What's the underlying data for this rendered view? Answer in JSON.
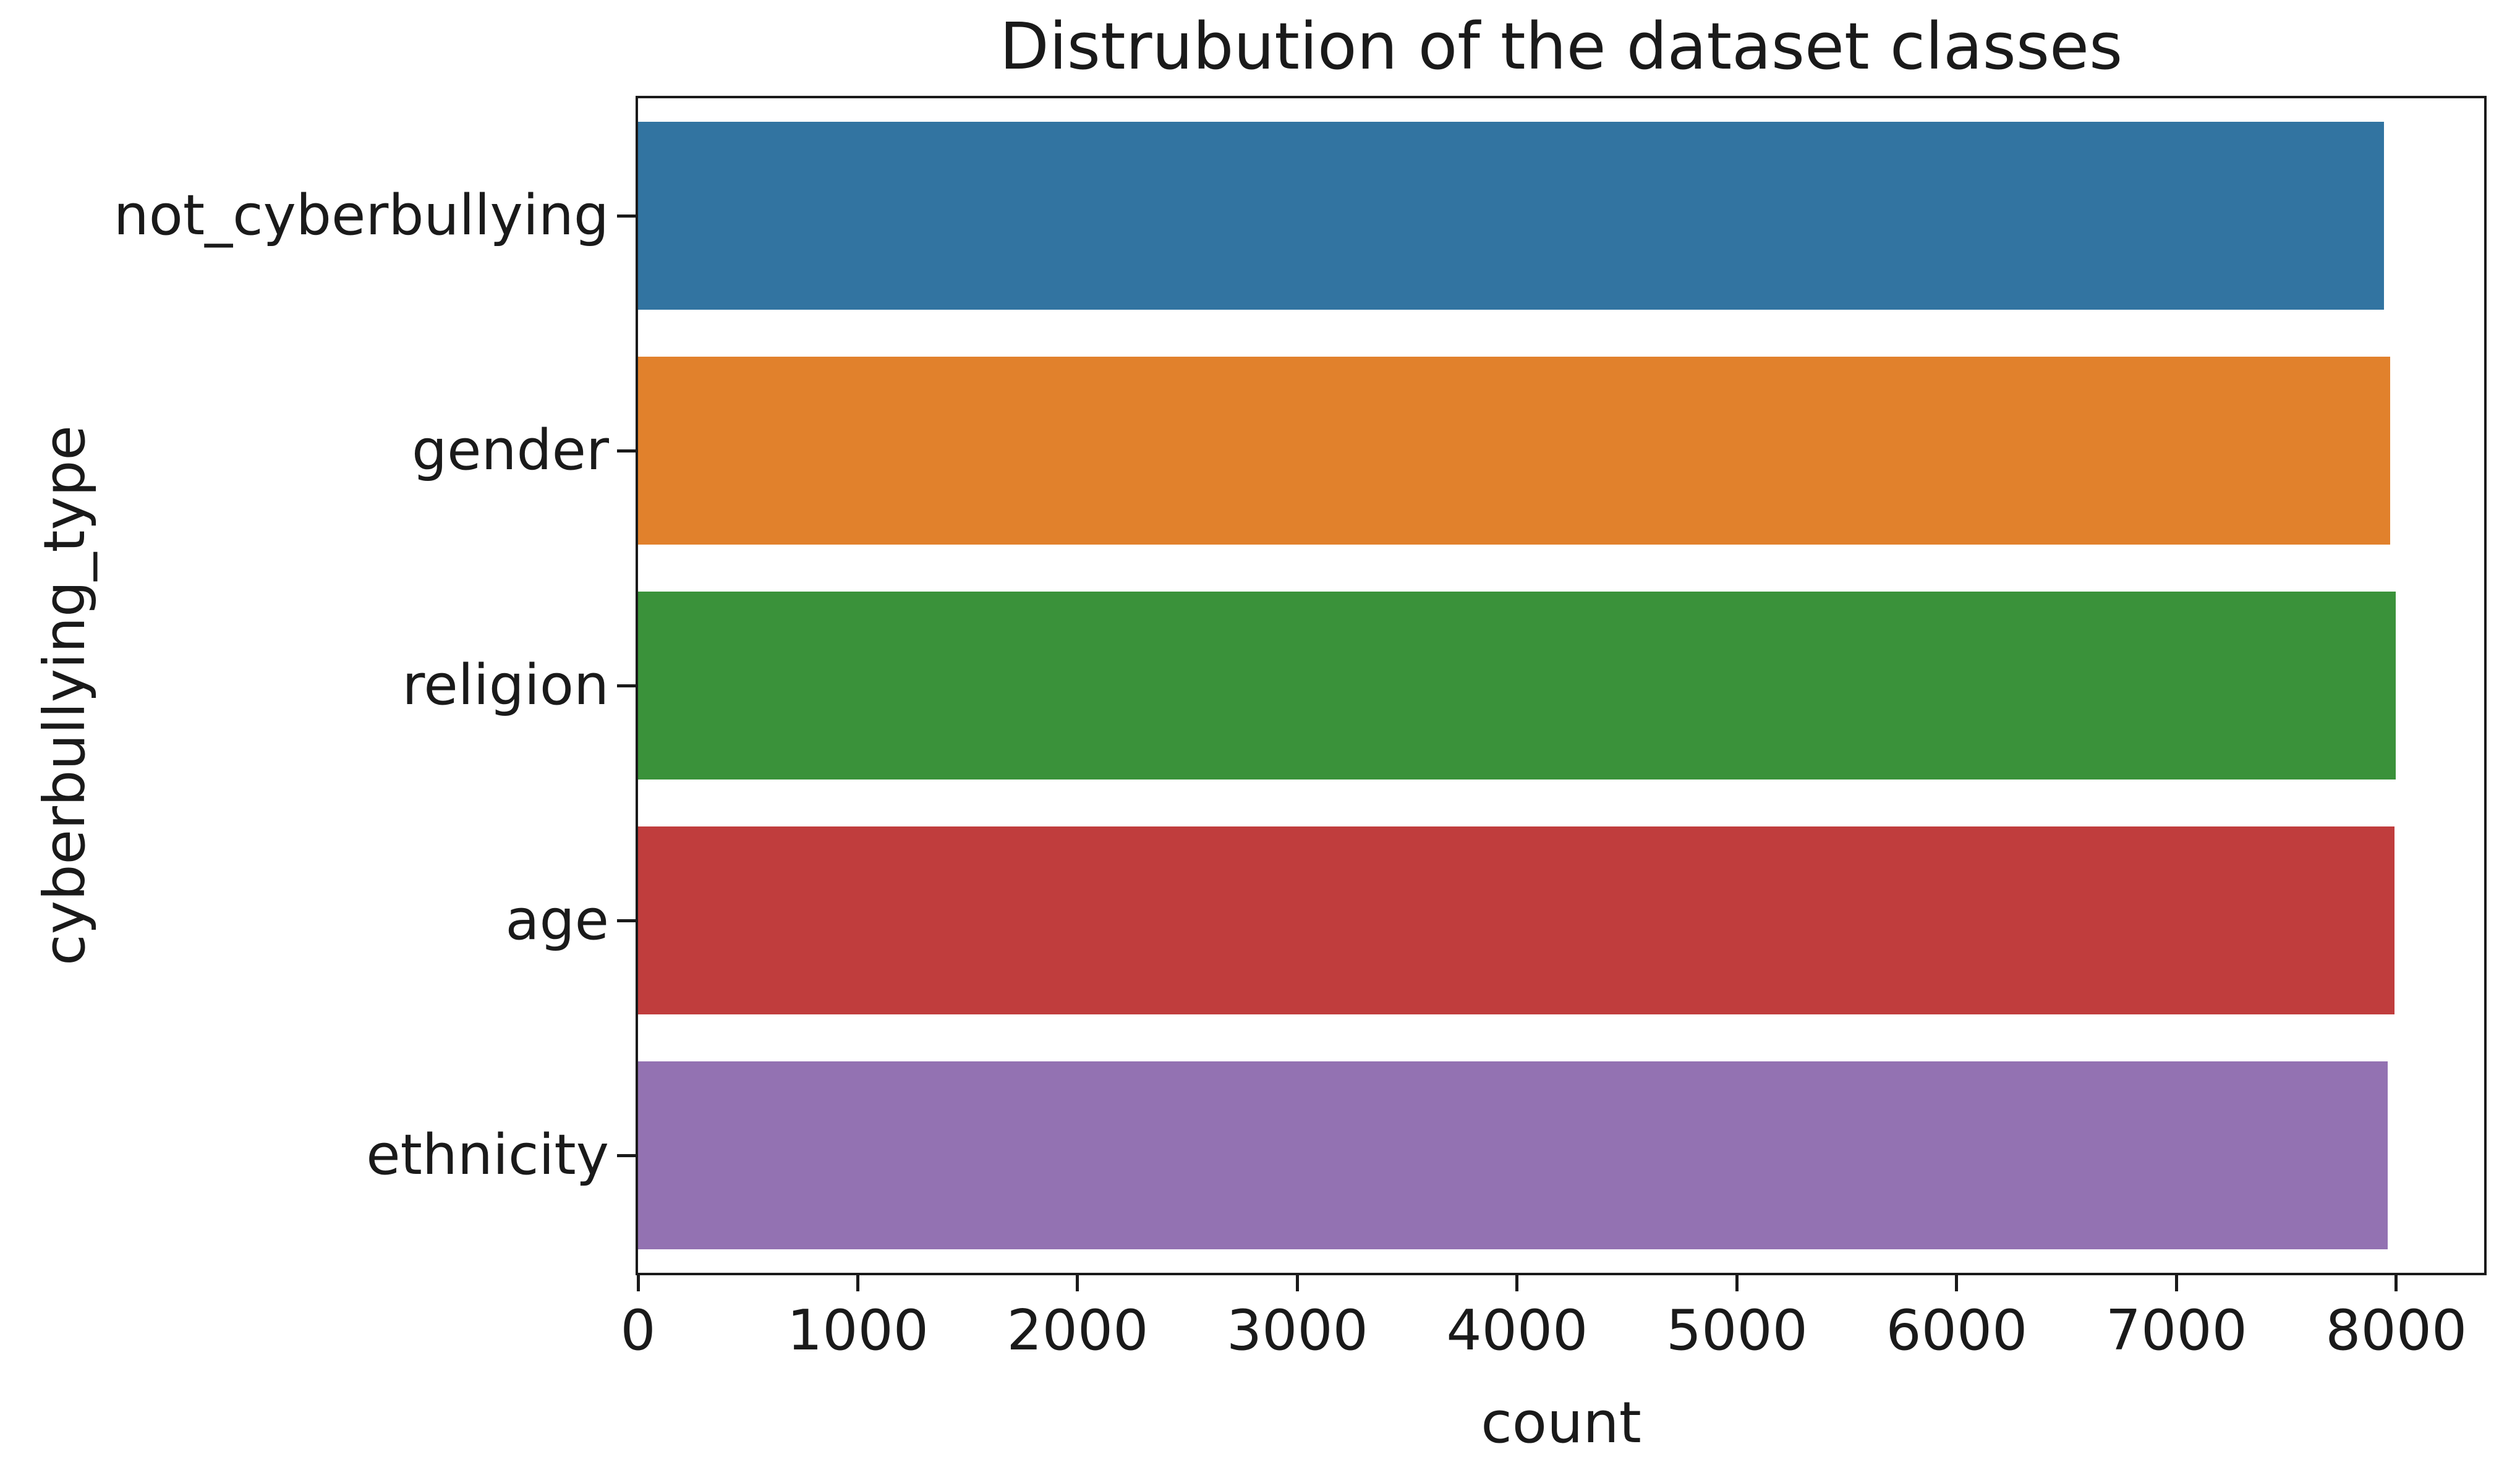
{
  "chart_data": {
    "type": "bar",
    "orientation": "horizontal",
    "title": "Distrubution of the dataset classes",
    "xlabel": "count",
    "ylabel": "cyberbullying_type",
    "categories": [
      "not_cyberbullying",
      "gender",
      "religion",
      "age",
      "ethnicity"
    ],
    "values": [
      7945,
      7973,
      7998,
      7992,
      7961
    ],
    "bar_colors": [
      "#3274a1",
      "#e1812c",
      "#3a923a",
      "#c03d3d",
      "#9372b2"
    ],
    "x_ticks": [
      0,
      1000,
      2000,
      3000,
      4000,
      5000,
      6000,
      7000,
      8000
    ],
    "xlim": [
      0,
      8400
    ],
    "grid": false,
    "legend": "none",
    "text_color": "#1a1a1a",
    "spine_color": "#1a1a1a",
    "background_color": "#ffffff"
  }
}
